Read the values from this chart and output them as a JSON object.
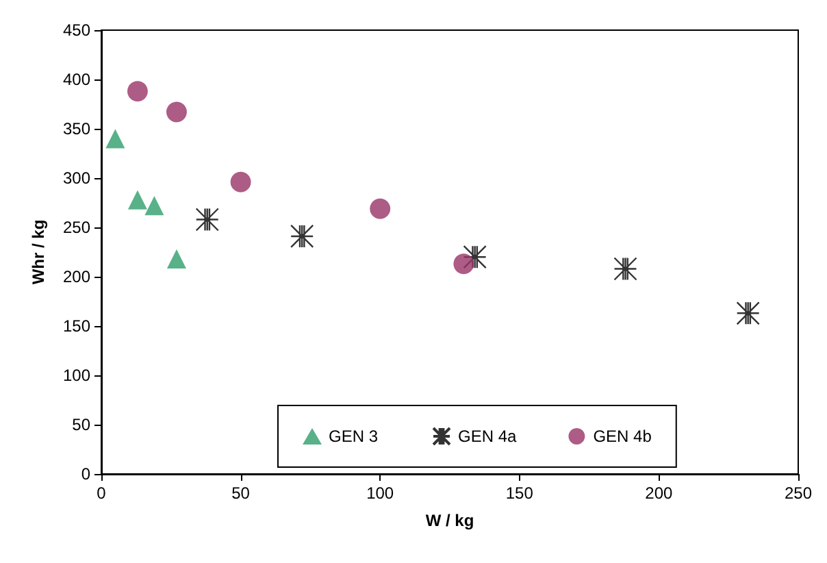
{
  "chart_data": {
    "type": "scatter",
    "xlabel": "W / kg",
    "ylabel": "Whr / kg",
    "xlim": [
      0,
      250
    ],
    "xticks": [
      0,
      50,
      100,
      150,
      200,
      250
    ],
    "ylim": [
      0,
      450
    ],
    "yticks": [
      0,
      50,
      100,
      150,
      200,
      250,
      300,
      350,
      400,
      450
    ],
    "grid": false,
    "legend": "bottom",
    "series": [
      {
        "name": "GEN 3",
        "color": "#2e9e6b",
        "marker": "triangle",
        "x": [
          5,
          13,
          19,
          27
        ],
        "values": [
          340,
          278,
          272,
          218
        ]
      },
      {
        "name": "GEN 4a",
        "color": "#000000",
        "marker": "cross",
        "x": [
          38,
          72,
          134,
          188,
          232
        ],
        "values": [
          258,
          241,
          220,
          208,
          163
        ]
      },
      {
        "name": "GEN 4b",
        "color": "#993366",
        "marker": "circle",
        "x": [
          13,
          27,
          50,
          100,
          130
        ],
        "values": [
          388,
          367,
          296,
          269,
          213
        ]
      }
    ]
  }
}
